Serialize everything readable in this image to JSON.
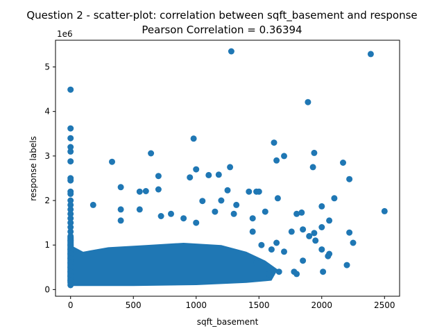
{
  "chart_data": {
    "type": "scatter",
    "title_line1": "Question 2 - scatter-plot: correlation between sqft_basement and response",
    "title_line2": "Pearson Correlation = 0.36394",
    "xlabel": "sqft_basement",
    "ylabel": "response labels",
    "y_offset_label": "1e6",
    "xlim": [
      -120,
      2620
    ],
    "ylim": [
      -0.15,
      5.6
    ],
    "x_ticks": [
      0,
      500,
      1000,
      1500,
      2000,
      2500
    ],
    "y_ticks": [
      0,
      1,
      2,
      3,
      4,
      5
    ],
    "x_tick_labels": [
      "0",
      "500",
      "1000",
      "1500",
      "2000",
      "2500"
    ],
    "y_tick_labels": [
      "0",
      "1",
      "2",
      "3",
      "4",
      "5"
    ],
    "grid": false,
    "marker_color": "#1f77b4",
    "points": [
      [
        0,
        4.49
      ],
      [
        0,
        3.62
      ],
      [
        0,
        3.4
      ],
      [
        0,
        3.2
      ],
      [
        0,
        3.1
      ],
      [
        0,
        2.88
      ],
      [
        0,
        2.5
      ],
      [
        0,
        2.45
      ],
      [
        0,
        2.2
      ],
      [
        0,
        2.15
      ],
      [
        0,
        2.0
      ],
      [
        0,
        1.9
      ],
      [
        0,
        1.8
      ],
      [
        0,
        1.7
      ],
      [
        0,
        1.6
      ],
      [
        0,
        1.5
      ],
      [
        0,
        1.4
      ],
      [
        0,
        1.3
      ],
      [
        0,
        1.2
      ],
      [
        0,
        1.1
      ],
      [
        0,
        1.0
      ],
      [
        0,
        0.9
      ],
      [
        0,
        0.8
      ],
      [
        0,
        0.7
      ],
      [
        0,
        0.6
      ],
      [
        0,
        0.5
      ],
      [
        0,
        0.4
      ],
      [
        0,
        0.3
      ],
      [
        0,
        0.2
      ],
      [
        0,
        0.1
      ],
      [
        180,
        1.9
      ],
      [
        330,
        2.87
      ],
      [
        400,
        2.3
      ],
      [
        400,
        1.8
      ],
      [
        400,
        1.55
      ],
      [
        550,
        2.2
      ],
      [
        600,
        2.21
      ],
      [
        550,
        1.8
      ],
      [
        640,
        3.06
      ],
      [
        700,
        2.55
      ],
      [
        700,
        2.25
      ],
      [
        720,
        1.65
      ],
      [
        800,
        1.7
      ],
      [
        900,
        1.6
      ],
      [
        950,
        2.52
      ],
      [
        980,
        3.39
      ],
      [
        1000,
        2.7
      ],
      [
        1050,
        1.99
      ],
      [
        1000,
        1.5
      ],
      [
        1100,
        2.57
      ],
      [
        1150,
        1.75
      ],
      [
        1180,
        2.58
      ],
      [
        1200,
        2.0
      ],
      [
        1250,
        2.23
      ],
      [
        1270,
        2.75
      ],
      [
        1280,
        5.35
      ],
      [
        1300,
        1.7
      ],
      [
        1320,
        1.9
      ],
      [
        1420,
        2.2
      ],
      [
        1480,
        2.2
      ],
      [
        1500,
        2.2
      ],
      [
        1450,
        1.6
      ],
      [
        1550,
        1.75
      ],
      [
        1620,
        3.3
      ],
      [
        1640,
        2.9
      ],
      [
        1650,
        2.05
      ],
      [
        1700,
        3.0
      ],
      [
        1800,
        1.7
      ],
      [
        1840,
        1.73
      ],
      [
        1890,
        4.21
      ],
      [
        1930,
        2.75
      ],
      [
        1940,
        3.07
      ],
      [
        2000,
        1.87
      ],
      [
        2060,
        1.55
      ],
      [
        2100,
        2.05
      ],
      [
        2170,
        2.85
      ],
      [
        2220,
        2.48
      ],
      [
        2390,
        5.29
      ],
      [
        2500,
        1.76
      ],
      [
        1780,
        0.4
      ],
      [
        1800,
        0.35
      ],
      [
        1850,
        0.65
      ],
      [
        1850,
        1.35
      ],
      [
        1950,
        1.1
      ],
      [
        2000,
        0.9
      ],
      [
        2010,
        0.4
      ],
      [
        2050,
        0.75
      ],
      [
        2060,
        0.8
      ],
      [
        2200,
        0.55
      ],
      [
        2220,
        1.28
      ],
      [
        2250,
        1.05
      ],
      [
        1900,
        1.2
      ],
      [
        1940,
        1.27
      ],
      [
        2000,
        1.4
      ],
      [
        1760,
        1.3
      ],
      [
        1700,
        0.85
      ],
      [
        1660,
        0.4
      ],
      [
        1640,
        1.05
      ],
      [
        1600,
        0.9
      ],
      [
        1580,
        0.35
      ],
      [
        1520,
        1.0
      ],
      [
        1480,
        0.6
      ],
      [
        1450,
        1.3
      ]
    ]
  }
}
